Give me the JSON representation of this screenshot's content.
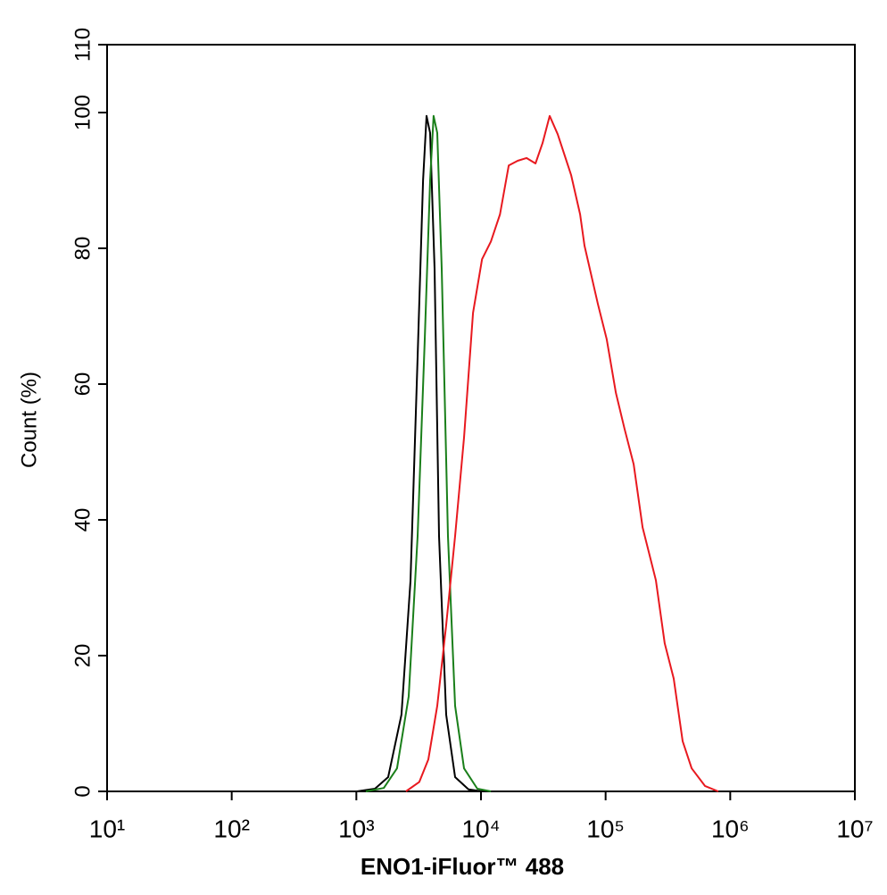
{
  "chart_data": {
    "type": "line",
    "x_label": "ENO1-iFluor™ 488",
    "y_label": "Count  (%)",
    "xscale": "log",
    "xlim": [
      10,
      10000000
    ],
    "xticks": [
      {
        "value": 10,
        "label": "10¹"
      },
      {
        "value": 100,
        "label": "10²"
      },
      {
        "value": 1000,
        "label": "10³"
      },
      {
        "value": 10000,
        "label": "10⁴"
      },
      {
        "value": 100000,
        "label": "10⁵"
      },
      {
        "value": 1000000,
        "label": "10⁶"
      },
      {
        "value": 10000000,
        "label": "10⁷"
      }
    ],
    "ylim": [
      0,
      110
    ],
    "yticks": [
      0,
      20,
      40,
      60,
      80,
      100,
      110
    ],
    "grid": false,
    "series": [
      {
        "color": "#000000",
        "x": [
          1010,
          1410,
          1800,
          2300,
          2720,
          3100,
          3430,
          3660,
          3910,
          4240,
          4610,
          5260,
          6200,
          7940,
          10200
        ],
        "values": [
          0,
          0.4,
          2.1,
          11.3,
          31,
          64,
          90,
          99.5,
          97,
          77,
          37.6,
          11.3,
          2.1,
          0.3,
          0
        ]
      },
      {
        "color": "#1a7f1a",
        "x": [
          1190,
          1660,
          2120,
          2630,
          3100,
          3540,
          3910,
          4170,
          4460,
          4840,
          5430,
          6200,
          7310,
          9350,
          12000
        ],
        "values": [
          0,
          0.5,
          3.4,
          14,
          37.6,
          66.6,
          90,
          99.5,
          97,
          77,
          37.6,
          12.6,
          3.4,
          0.4,
          0
        ]
      },
      {
        "color": "#e8191f",
        "x": [
          2500,
          3200,
          3780,
          4460,
          5260,
          6200,
          7310,
          8630,
          10200,
          12000,
          14200,
          16700,
          19700,
          23200,
          27400,
          31200,
          35600,
          41300,
          52900,
          62400,
          67700,
          86700,
          102000,
          121000,
          142000,
          168000,
          198000,
          253000,
          298000,
          352000,
          415000,
          490000,
          627000,
          802000
        ],
        "values": [
          0,
          1.4,
          4.7,
          12.6,
          24.5,
          37.6,
          52.1,
          70.5,
          78.4,
          81,
          85,
          92.2,
          92.9,
          93.3,
          92.5,
          95.5,
          99.5,
          96.8,
          90.8,
          85,
          80.4,
          71.8,
          66.6,
          58.7,
          53.4,
          48.2,
          38.9,
          31.1,
          21.8,
          16.6,
          7.4,
          3.4,
          0.8,
          0
        ]
      }
    ]
  }
}
